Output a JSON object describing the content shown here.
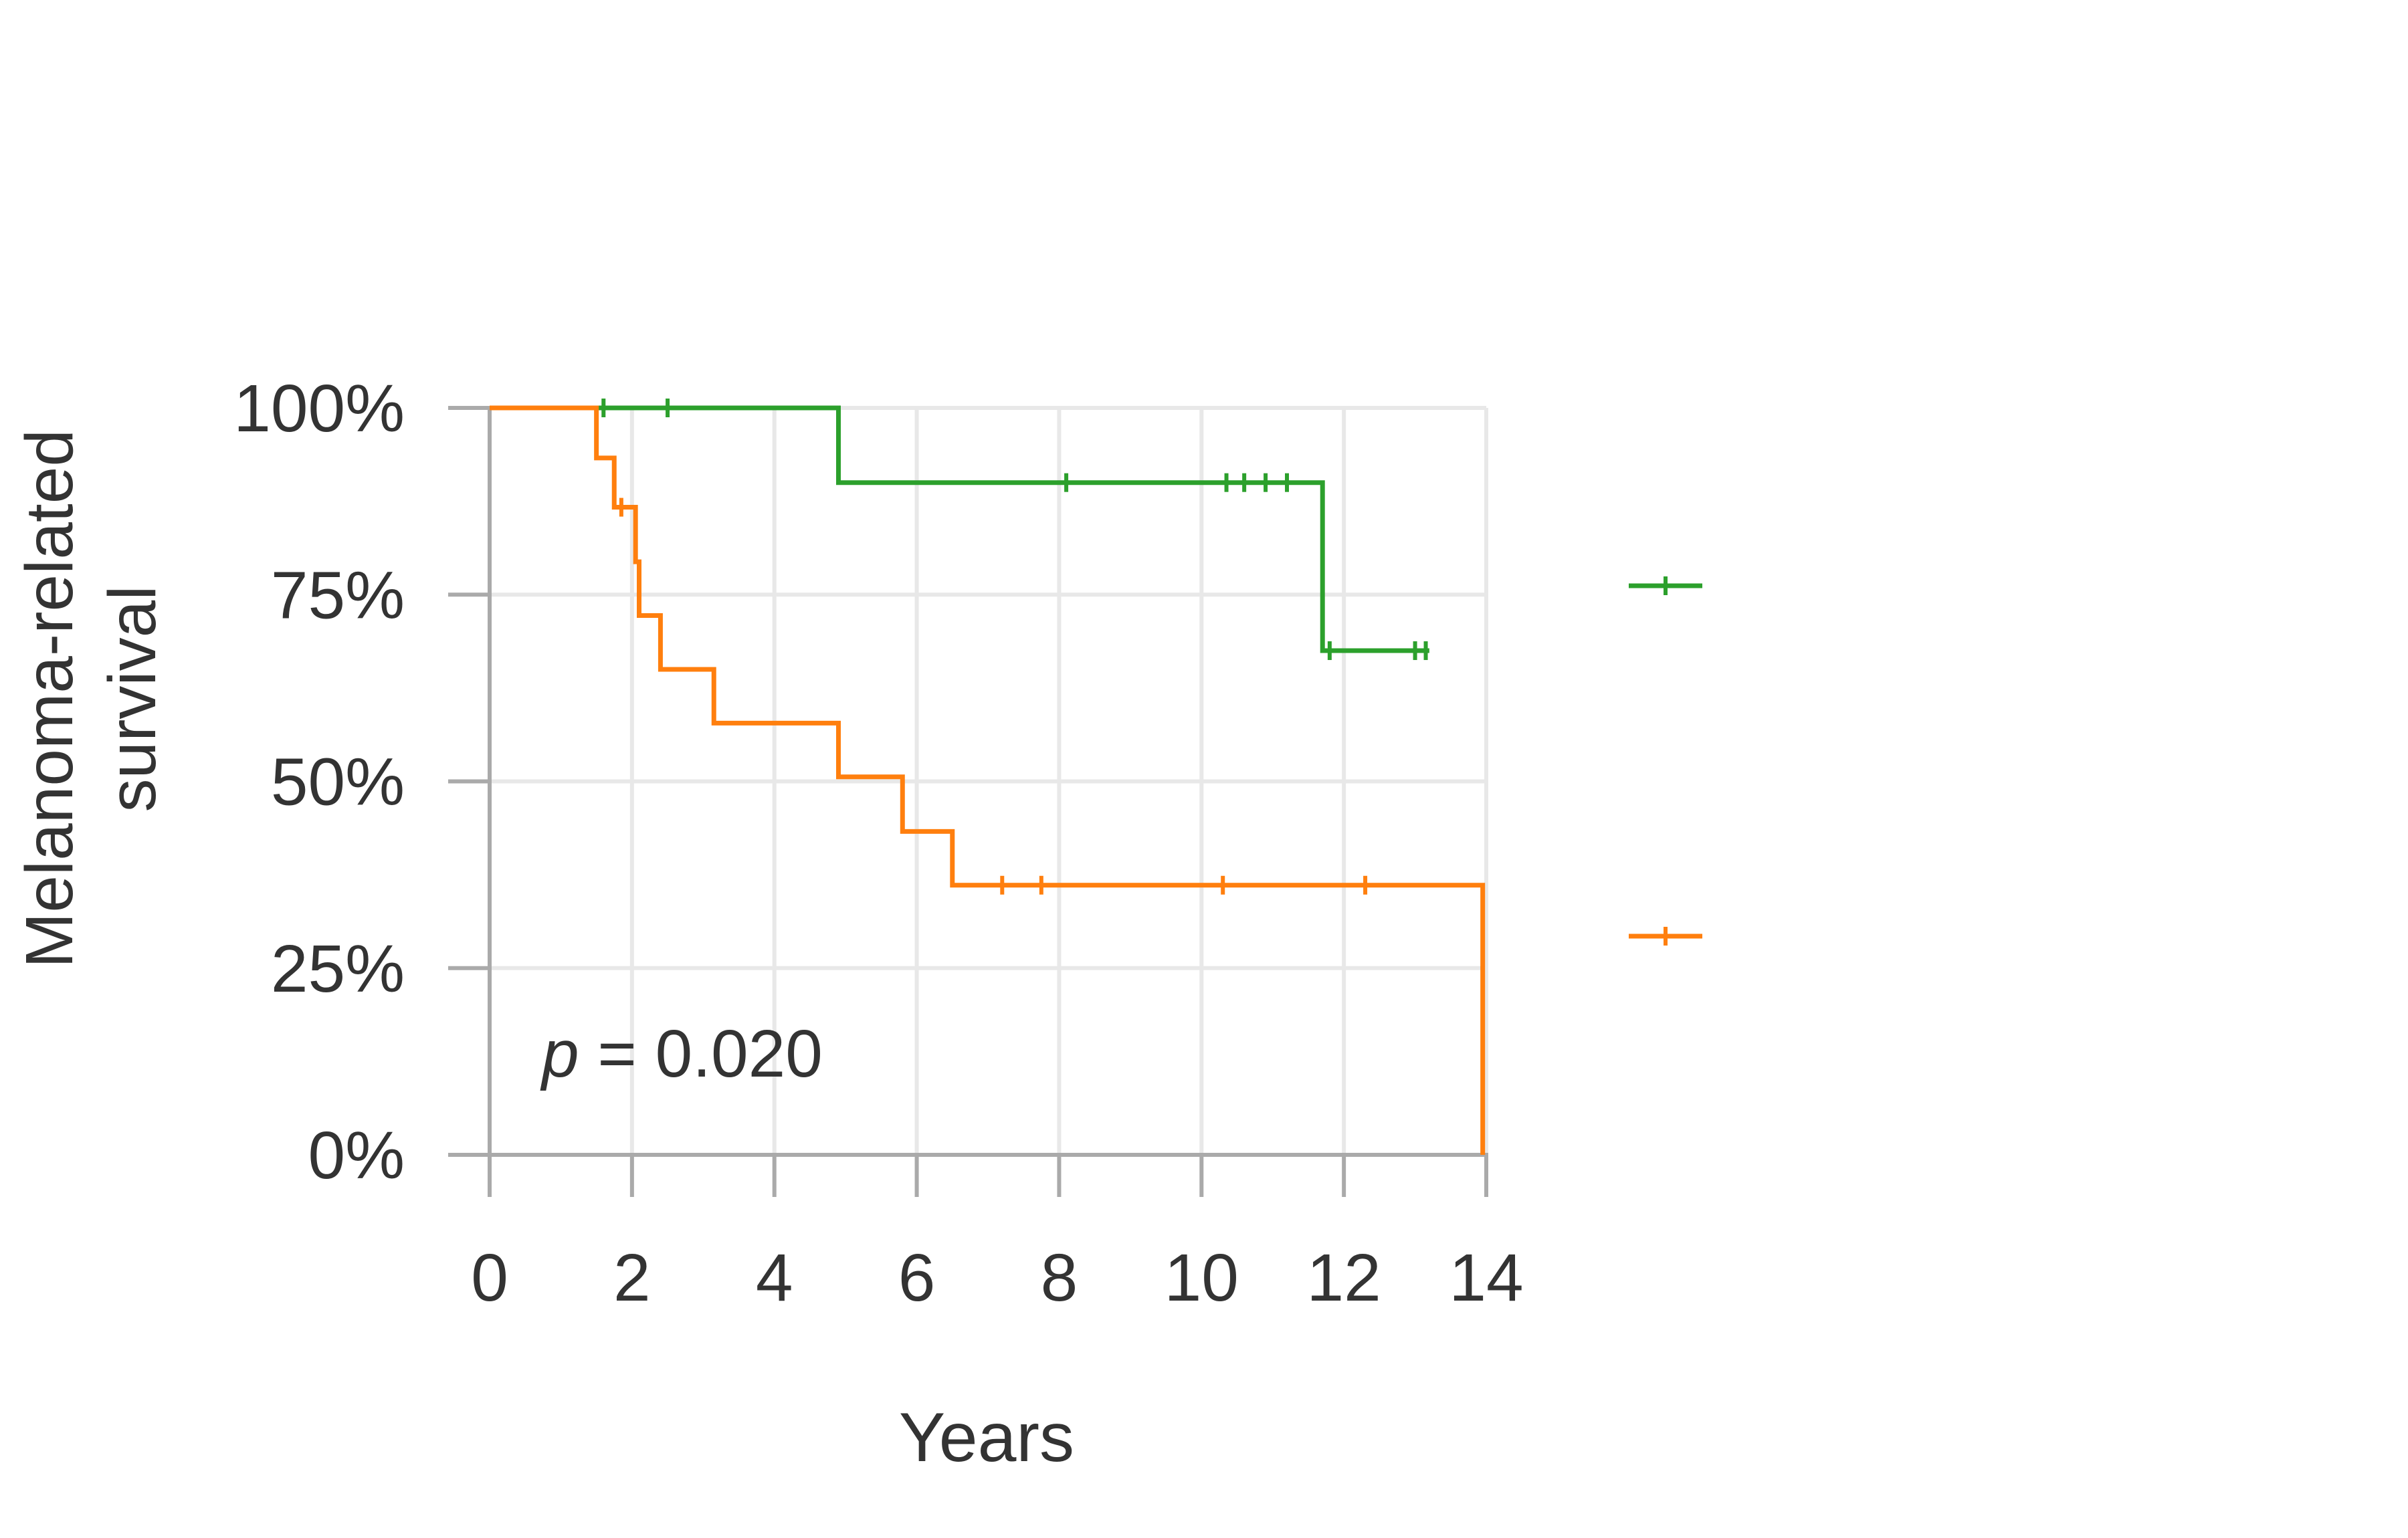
{
  "chart_data": {
    "type": "line",
    "step": true,
    "xlabel": "Years",
    "ylabel": "Melanoma-related survival",
    "ylabel_lines": [
      "Melanoma-related",
      "survival"
    ],
    "xlim": [
      0,
      14
    ],
    "ylim": [
      0,
      100
    ],
    "x_ticks": [
      0,
      2,
      4,
      6,
      8,
      10,
      12,
      14
    ],
    "y_ticks": [
      0,
      25,
      50,
      75,
      100
    ],
    "y_tick_labels": [
      "0%",
      "25%",
      "50%",
      "75%",
      "100%"
    ],
    "grid": true,
    "annotation": {
      "italic": "p",
      "rest": " = 0.020"
    },
    "legend": {
      "position": "right",
      "show_labels": false
    },
    "series": [
      {
        "color": "#2ca02c",
        "steps": [
          [
            0,
            100
          ],
          [
            4.9,
            90.0
          ],
          [
            11.7,
            67.5
          ],
          [
            13.2,
            67.5
          ]
        ],
        "censored": [
          [
            1.6,
            100
          ],
          [
            2.5,
            100
          ],
          [
            8.1,
            90.0
          ],
          [
            10.35,
            90.0
          ],
          [
            10.6,
            90.0
          ],
          [
            10.9,
            90.0
          ],
          [
            11.2,
            90.0
          ],
          [
            11.8,
            67.5
          ],
          [
            13.0,
            67.5
          ],
          [
            13.15,
            67.5
          ]
        ]
      },
      {
        "color": "#ff7f0e",
        "steps": [
          [
            0,
            100
          ],
          [
            1.5,
            93.3
          ],
          [
            1.75,
            86.7
          ],
          [
            2.05,
            79.4
          ],
          [
            2.1,
            72.2
          ],
          [
            2.4,
            65.0
          ],
          [
            3.15,
            57.8
          ],
          [
            4.9,
            50.6
          ],
          [
            5.8,
            43.3
          ],
          [
            6.5,
            36.1
          ],
          [
            13.95,
            0
          ]
        ],
        "censored": [
          [
            1.85,
            86.7
          ],
          [
            7.2,
            36.1
          ],
          [
            7.75,
            36.1
          ],
          [
            10.3,
            36.1
          ],
          [
            12.3,
            36.1
          ]
        ]
      }
    ]
  }
}
